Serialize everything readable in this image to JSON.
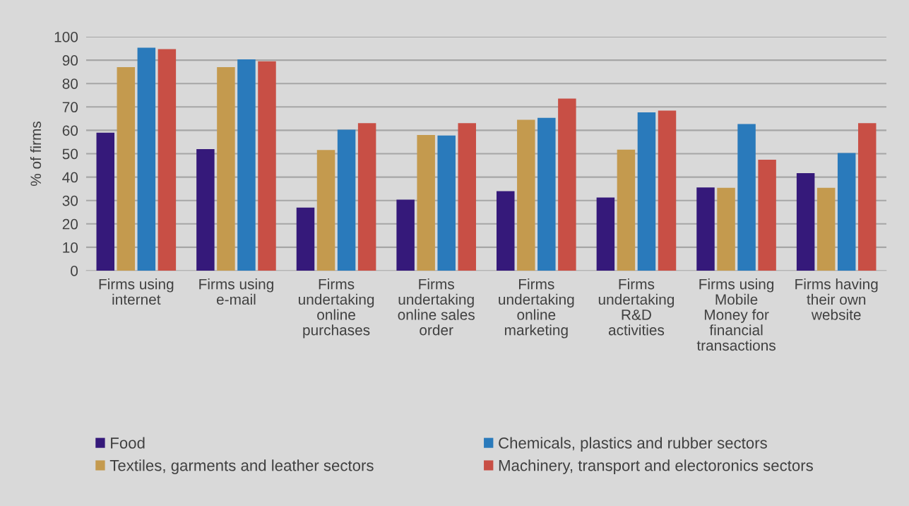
{
  "chart_data": {
    "type": "bar",
    "ylabel": "% of firms",
    "categories": [
      "Firms using\ninternet",
      "Firms using\ne-mail",
      "Firms\nundertaking\nonline\npurchases",
      "Firms\nundertaking\nonline sales\norder",
      "Firms\nundertaking\nonline\nmarketing",
      "Firms\nundertaking\nR&D\nactivities",
      "Firms using\nMobile\nMoney for\nfinancial\ntransactions",
      "Firms having\ntheir own\nwebsite"
    ],
    "series": [
      {
        "name": "Food",
        "color": "#35197a",
        "values": [
          59,
          52,
          27,
          30.4,
          34,
          31.3,
          35.6,
          41.7
        ]
      },
      {
        "name": "Textiles, garments and leather sectors",
        "color": "#c49a4e",
        "values": [
          87,
          87,
          51.6,
          58,
          64.5,
          51.7,
          35.4,
          35.4
        ]
      },
      {
        "name": "Chemicals, plastics and rubber sectors",
        "color": "#2a7abb",
        "values": [
          95.3,
          90.3,
          60.3,
          57.8,
          65.3,
          67.7,
          62.7,
          50.3
        ]
      },
      {
        "name": "Machinery, transport and electoronics sectors",
        "color": "#c84f45",
        "values": [
          94.7,
          89.5,
          63.1,
          63.1,
          73.6,
          68.4,
          47.4,
          63.1
        ]
      }
    ],
    "ylim": [
      0,
      100
    ],
    "yticks": [
      0,
      10,
      20,
      30,
      40,
      50,
      60,
      70,
      80,
      90,
      100
    ],
    "grid": "y",
    "legend": "bottom"
  }
}
